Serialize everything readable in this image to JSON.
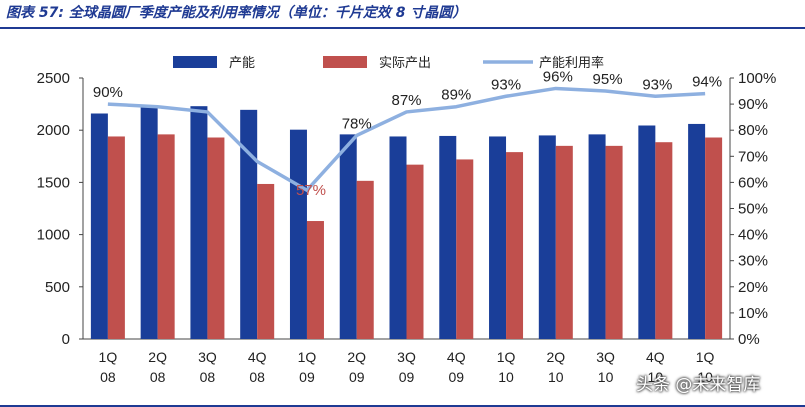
{
  "caption": "图表 57: 全球晶圆厂季度产能及利用率情况（单位：千片定效 8 寸晶圆）",
  "watermark": "头条 @未来智库",
  "colors": {
    "capacity": "#1a3e99",
    "output": "#c0504d",
    "utilization": "#8eb0e0",
    "caption": "#1f3a93"
  },
  "chart_data": {
    "type": "bar",
    "categories": [
      "1Q 08",
      "2Q 08",
      "3Q 08",
      "4Q 08",
      "1Q 09",
      "2Q 09",
      "3Q 09",
      "4Q 09",
      "1Q 10",
      "2Q 10",
      "3Q 10",
      "4Q 10",
      "1Q 10"
    ],
    "category_lines": [
      [
        "1Q",
        "08"
      ],
      [
        "2Q",
        "08"
      ],
      [
        "3Q",
        "08"
      ],
      [
        "4Q",
        "08"
      ],
      [
        "1Q",
        "09"
      ],
      [
        "2Q",
        "09"
      ],
      [
        "3Q",
        "09"
      ],
      [
        "4Q",
        "09"
      ],
      [
        "1Q",
        "10"
      ],
      [
        "2Q",
        "10"
      ],
      [
        "3Q",
        "10"
      ],
      [
        "4Q",
        "10"
      ],
      [
        "1Q",
        "10"
      ]
    ],
    "series": [
      {
        "name": "产能",
        "kind": "bar",
        "axis": "left",
        "values": [
          2160,
          2220,
          2230,
          2195,
          2005,
          1960,
          1940,
          1945,
          1940,
          1950,
          1960,
          2045,
          2060
        ]
      },
      {
        "name": "实际产出",
        "kind": "bar",
        "axis": "left",
        "values": [
          1940,
          1960,
          1930,
          1485,
          1130,
          1515,
          1670,
          1720,
          1790,
          1850,
          1850,
          1885,
          1930
        ]
      },
      {
        "name": "产能利用率",
        "kind": "line",
        "axis": "right",
        "values": [
          90,
          89,
          87,
          68,
          57,
          78,
          87,
          89,
          93,
          96,
          95,
          93,
          94
        ],
        "labels": [
          "90%",
          "",
          "",
          "",
          "57%",
          "78%",
          "87%",
          "89%",
          "93%",
          "96%",
          "95%",
          "93%",
          "94%"
        ]
      }
    ],
    "y_left": {
      "min": 0,
      "max": 2500,
      "ticks": [
        "0",
        "500",
        "1000",
        "1500",
        "2000",
        "2500"
      ]
    },
    "y_right": {
      "min": 0,
      "max": 100,
      "ticks": [
        "0%",
        "10%",
        "20%",
        "30%",
        "40%",
        "50%",
        "60%",
        "70%",
        "80%",
        "90%",
        "100%"
      ]
    },
    "grid": false,
    "legend_position": "top"
  }
}
